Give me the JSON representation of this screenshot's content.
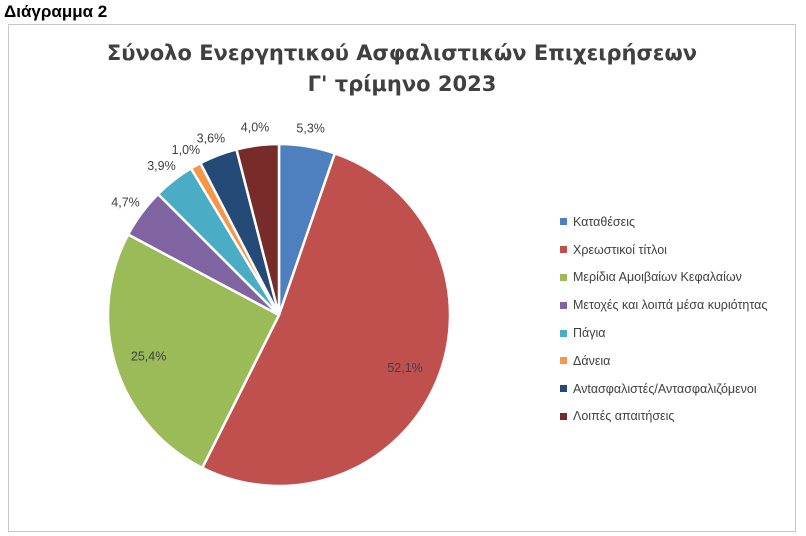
{
  "header": {
    "label": "Διάγραμμα 2"
  },
  "chart_data": {
    "type": "pie",
    "title": "Σύνολο Ενεργητικού Ασφαλιστικών Επιχειρήσεων",
    "subtitle": "Γ' τρίμηνο 2023",
    "slices": [
      {
        "name": "Καταθέσεις",
        "value": 5.3,
        "label": "5,3%",
        "color": "#4e7fbf"
      },
      {
        "name": "Χρεωστικοί τίτλοι",
        "value": 52.1,
        "label": "52,1%",
        "color": "#c0504d"
      },
      {
        "name": "Μερίδια Αμοιβαίων Κεφαλαίων",
        "value": 25.4,
        "label": "25,4%",
        "color": "#9bbb59"
      },
      {
        "name": "Μετοχές και λοιπά μέσα κυριότητας",
        "value": 4.7,
        "label": "4,7%",
        "color": "#8064a2"
      },
      {
        "name": "Πάγια",
        "value": 3.9,
        "label": "3,9%",
        "color": "#4bacc6"
      },
      {
        "name": "Δάνεια",
        "value": 1.0,
        "label": "1,0%",
        "color": "#f79646"
      },
      {
        "name": "Ανtασφαλιστές/Αντασφαλιζόμενοι",
        "value": 3.6,
        "label": "3,6%",
        "color": "#254a77"
      },
      {
        "name": "Λοιπές απαιτήσεις",
        "value": 4.0,
        "label": "4,0%",
        "color": "#772c2a"
      }
    ],
    "legend_position": "right"
  }
}
